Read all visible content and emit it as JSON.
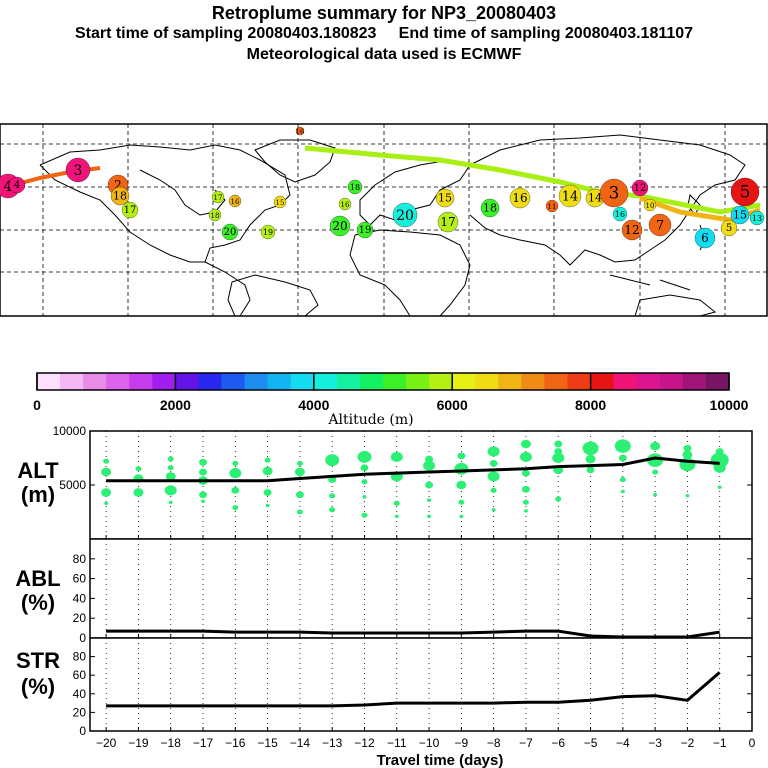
{
  "header": {
    "title": "Retroplume summary for NP3_20080403",
    "subtitle": "Start time of sampling 20080403.180823     End time of sampling 20080403.181107",
    "met": "Meteorological data used is ECMWF"
  },
  "colorbar": {
    "ticks": [
      "0",
      "2000",
      "4000",
      "6000",
      "8000",
      "10000"
    ],
    "label": "Altitude (m)",
    "colors": [
      "#fce0fc",
      "#f4b8f4",
      "#e88ce8",
      "#dc64ec",
      "#c83cf0",
      "#a01ef0",
      "#6414e6",
      "#2828f0",
      "#1e5af0",
      "#1e8cf0",
      "#14b4f0",
      "#14dcf0",
      "#14f0dc",
      "#14f0a0",
      "#14f064",
      "#3cf028",
      "#78f014",
      "#b4f014",
      "#e6f014",
      "#f0dc14",
      "#f0b414",
      "#f08c14",
      "#f06414",
      "#f03c14",
      "#e61414",
      "#f01478",
      "#dc1490",
      "#c8148c",
      "#a01478",
      "#781464"
    ]
  },
  "map": {
    "labels": [
      {
        "n": "16",
        "c": "#f06414"
      },
      {
        "n": "20",
        "c": "#3cf028"
      },
      {
        "n": "19",
        "c": "#b4f014"
      },
      {
        "n": "17",
        "c": "#b4f014"
      },
      {
        "n": "18",
        "c": "#b4f014"
      },
      {
        "n": "3",
        "c": "#f01478"
      },
      {
        "n": "4",
        "c": "#f01478"
      },
      {
        "n": "2",
        "c": "#f06414"
      },
      {
        "n": "18",
        "c": "#f0b414"
      },
      {
        "n": "17",
        "c": "#b4f014"
      },
      {
        "n": "16",
        "c": "#f0b414"
      },
      {
        "n": "15",
        "c": "#f0dc14"
      },
      {
        "n": "20",
        "c": "#3cf028"
      },
      {
        "n": "19",
        "c": "#3cf028"
      },
      {
        "n": "18",
        "c": "#3cf028"
      },
      {
        "n": "16",
        "c": "#b4f014"
      },
      {
        "n": "20",
        "c": "#14f0dc"
      },
      {
        "n": "17",
        "c": "#b4f014"
      },
      {
        "n": "16",
        "c": "#f0dc14"
      },
      {
        "n": "14",
        "c": "#f0dc14"
      },
      {
        "n": "18",
        "c": "#3cf028"
      },
      {
        "n": "15",
        "c": "#f0dc14"
      },
      {
        "n": "11",
        "c": "#f06414"
      },
      {
        "n": "14",
        "c": "#f0dc14"
      },
      {
        "n": "3",
        "c": "#f06414"
      },
      {
        "n": "12",
        "c": "#f01478"
      },
      {
        "n": "10",
        "c": "#f0dc14"
      },
      {
        "n": "16",
        "c": "#14f0dc"
      },
      {
        "n": "12",
        "c": "#f06414"
      },
      {
        "n": "7",
        "c": "#f06414"
      },
      {
        "n": "6",
        "c": "#14dcf0"
      },
      {
        "n": "5",
        "c": "#f0dc14"
      },
      {
        "n": "15",
        "c": "#14dcf0"
      },
      {
        "n": "5",
        "c": "#e61414"
      },
      {
        "n": "4",
        "c": "#f01478"
      },
      {
        "n": "13",
        "c": "#14f0dc"
      }
    ]
  },
  "panels": {
    "alt": {
      "name": "ALT",
      "unit": "(m)"
    },
    "abl": {
      "name": "ABL",
      "unit": "(%)"
    },
    "str": {
      "name": "STR",
      "unit": "(%)"
    },
    "xlabel": "Travel time (days)"
  },
  "chart_data": [
    {
      "type": "scatter",
      "title": "ALT",
      "ylabel": "(m)",
      "ylim": [
        0,
        10000
      ],
      "yticks": [
        "10000",
        "5000"
      ],
      "xlim": [
        -20,
        0
      ],
      "median_line": {
        "x": [
          -20,
          -19,
          -18,
          -17,
          -16,
          -15,
          -14,
          -13,
          -12,
          -11,
          -10,
          -9,
          -8,
          -7,
          -6,
          -5,
          -4,
          -3,
          -2,
          -1
        ],
        "y": [
          5400,
          5400,
          5400,
          5400,
          5400,
          5400,
          5600,
          5800,
          6000,
          6100,
          6200,
          6300,
          6400,
          6500,
          6700,
          6800,
          6900,
          7500,
          7200,
          7000
        ]
      },
      "points": [
        {
          "x": -20,
          "y": 7200,
          "s": 3
        },
        {
          "x": -20,
          "y": 6200,
          "s": 5
        },
        {
          "x": -20,
          "y": 4300,
          "s": 5
        },
        {
          "x": -20,
          "y": 3300,
          "s": 2
        },
        {
          "x": -19,
          "y": 6500,
          "s": 3
        },
        {
          "x": -19,
          "y": 5600,
          "s": 5
        },
        {
          "x": -19,
          "y": 4300,
          "s": 5
        },
        {
          "x": -18,
          "y": 7400,
          "s": 3
        },
        {
          "x": -18,
          "y": 6600,
          "s": 3
        },
        {
          "x": -18,
          "y": 5800,
          "s": 5
        },
        {
          "x": -18,
          "y": 4500,
          "s": 6
        },
        {
          "x": -18,
          "y": 3400,
          "s": 2
        },
        {
          "x": -17,
          "y": 7100,
          "s": 4
        },
        {
          "x": -17,
          "y": 6200,
          "s": 4
        },
        {
          "x": -17,
          "y": 5400,
          "s": 5
        },
        {
          "x": -17,
          "y": 4100,
          "s": 4
        },
        {
          "x": -17,
          "y": 3500,
          "s": 2
        },
        {
          "x": -16,
          "y": 7000,
          "s": 3
        },
        {
          "x": -16,
          "y": 6100,
          "s": 6
        },
        {
          "x": -16,
          "y": 4500,
          "s": 4
        },
        {
          "x": -16,
          "y": 2900,
          "s": 3
        },
        {
          "x": -15,
          "y": 7300,
          "s": 3
        },
        {
          "x": -15,
          "y": 6300,
          "s": 5
        },
        {
          "x": -15,
          "y": 4300,
          "s": 4
        },
        {
          "x": -15,
          "y": 3100,
          "s": 2
        },
        {
          "x": -14,
          "y": 7000,
          "s": 3
        },
        {
          "x": -14,
          "y": 6200,
          "s": 5
        },
        {
          "x": -14,
          "y": 4100,
          "s": 4
        },
        {
          "x": -14,
          "y": 2500,
          "s": 3
        },
        {
          "x": -13,
          "y": 7300,
          "s": 7
        },
        {
          "x": -13,
          "y": 5500,
          "s": 4
        },
        {
          "x": -13,
          "y": 4000,
          "s": 3
        },
        {
          "x": -13,
          "y": 2700,
          "s": 3
        },
        {
          "x": -12,
          "y": 7600,
          "s": 7
        },
        {
          "x": -12,
          "y": 6600,
          "s": 4
        },
        {
          "x": -12,
          "y": 5300,
          "s": 3
        },
        {
          "x": -12,
          "y": 3900,
          "s": 2
        },
        {
          "x": -12,
          "y": 2200,
          "s": 3
        },
        {
          "x": -11,
          "y": 7600,
          "s": 6
        },
        {
          "x": -11,
          "y": 5800,
          "s": 6
        },
        {
          "x": -11,
          "y": 3300,
          "s": 3
        },
        {
          "x": -11,
          "y": 2100,
          "s": 2
        },
        {
          "x": -10,
          "y": 7400,
          "s": 4
        },
        {
          "x": -10,
          "y": 6800,
          "s": 6
        },
        {
          "x": -10,
          "y": 5000,
          "s": 4
        },
        {
          "x": -10,
          "y": 3600,
          "s": 2
        },
        {
          "x": -10,
          "y": 2100,
          "s": 2
        },
        {
          "x": -9,
          "y": 7700,
          "s": 4
        },
        {
          "x": -9,
          "y": 6500,
          "s": 7
        },
        {
          "x": -9,
          "y": 5000,
          "s": 5
        },
        {
          "x": -9,
          "y": 3400,
          "s": 3
        },
        {
          "x": -9,
          "y": 2100,
          "s": 2
        },
        {
          "x": -8,
          "y": 8100,
          "s": 6
        },
        {
          "x": -8,
          "y": 7000,
          "s": 4
        },
        {
          "x": -8,
          "y": 5800,
          "s": 6
        },
        {
          "x": -8,
          "y": 4500,
          "s": 3
        },
        {
          "x": -8,
          "y": 2700,
          "s": 2
        },
        {
          "x": -7,
          "y": 8800,
          "s": 5
        },
        {
          "x": -7,
          "y": 7600,
          "s": 6
        },
        {
          "x": -7,
          "y": 6100,
          "s": 4
        },
        {
          "x": -7,
          "y": 4600,
          "s": 4
        },
        {
          "x": -7,
          "y": 3400,
          "s": 3
        },
        {
          "x": -7,
          "y": 2600,
          "s": 2
        },
        {
          "x": -6,
          "y": 8800,
          "s": 4
        },
        {
          "x": -6,
          "y": 8100,
          "s": 4
        },
        {
          "x": -6,
          "y": 7500,
          "s": 6
        },
        {
          "x": -6,
          "y": 6400,
          "s": 5
        },
        {
          "x": -6,
          "y": 3700,
          "s": 3
        },
        {
          "x": -5,
          "y": 8400,
          "s": 8
        },
        {
          "x": -5,
          "y": 7400,
          "s": 5
        },
        {
          "x": -5,
          "y": 6400,
          "s": 4
        },
        {
          "x": -4,
          "y": 8600,
          "s": 8
        },
        {
          "x": -4,
          "y": 7500,
          "s": 4
        },
        {
          "x": -4,
          "y": 5500,
          "s": 3
        },
        {
          "x": -4,
          "y": 4400,
          "s": 2
        },
        {
          "x": -3,
          "y": 8600,
          "s": 5
        },
        {
          "x": -3,
          "y": 7300,
          "s": 8
        },
        {
          "x": -3,
          "y": 6200,
          "s": 3
        },
        {
          "x": -3,
          "y": 4100,
          "s": 2
        },
        {
          "x": -2,
          "y": 8400,
          "s": 4
        },
        {
          "x": -2,
          "y": 7800,
          "s": 5
        },
        {
          "x": -2,
          "y": 6900,
          "s": 8
        },
        {
          "x": -2,
          "y": 4000,
          "s": 2
        },
        {
          "x": -1,
          "y": 8100,
          "s": 4
        },
        {
          "x": -1,
          "y": 7300,
          "s": 9
        },
        {
          "x": -1,
          "y": 6600,
          "s": 6
        },
        {
          "x": -1,
          "y": 4800,
          "s": 2
        }
      ]
    },
    {
      "type": "line",
      "title": "ABL",
      "ylabel": "(%)",
      "ylim": [
        0,
        100
      ],
      "yticks": [
        "80",
        "60",
        "40",
        "20",
        "0"
      ],
      "x": [
        -20,
        -19,
        -18,
        -17,
        -16,
        -15,
        -14,
        -13,
        -12,
        -11,
        -10,
        -9,
        -8,
        -7,
        -6,
        -5,
        -4,
        -3,
        -2,
        -1
      ],
      "values": [
        7,
        7,
        7,
        7,
        6,
        6,
        6,
        5,
        5,
        5,
        5,
        5,
        6,
        7,
        7,
        2,
        1,
        1,
        1,
        6
      ]
    },
    {
      "type": "line",
      "title": "STR",
      "ylabel": "(%)",
      "ylim": [
        0,
        100
      ],
      "yticks": [
        "80",
        "60",
        "40",
        "20",
        "0"
      ],
      "x": [
        -20,
        -19,
        -18,
        -17,
        -16,
        -15,
        -14,
        -13,
        -12,
        -11,
        -10,
        -9,
        -8,
        -7,
        -6,
        -5,
        -4,
        -3,
        -2,
        -1
      ],
      "values": [
        27,
        27,
        27,
        27,
        27,
        27,
        27,
        27,
        28,
        30,
        30,
        30,
        30,
        31,
        31,
        33,
        37,
        38,
        33,
        63
      ],
      "xticks": [
        "−20",
        "−19",
        "−18",
        "−17",
        "−16",
        "−15",
        "−14",
        "−13",
        "−12",
        "−11",
        "−10",
        "−9",
        "−8",
        "−7",
        "−6",
        "−5",
        "−4",
        "−3",
        "−2",
        "−1",
        "0"
      ],
      "xlabel": "Travel time (days)"
    }
  ]
}
